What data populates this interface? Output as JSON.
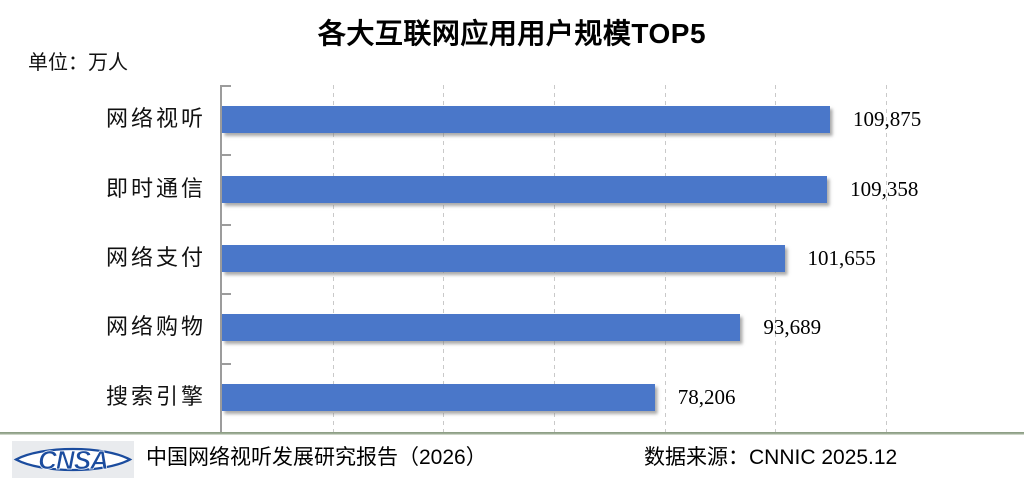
{
  "title": "各大互联网应用用户规模TOP5",
  "unit_label": "单位：万人",
  "chart_data": {
    "type": "bar",
    "orientation": "horizontal",
    "title": "各大互联网应用用户规模TOP5",
    "unit": "万人",
    "categories": [
      "网络视听",
      "即时通信",
      "网络支付",
      "网络购物",
      "搜索引擎"
    ],
    "values": [
      109875,
      109358,
      101655,
      93689,
      78206
    ],
    "value_labels": [
      "109,875",
      "109,358",
      "101,655",
      "93,689",
      "78,206"
    ],
    "xlabel": "",
    "ylabel": "",
    "xlim": [
      0,
      120000
    ],
    "gridline_interval": 20000,
    "grid": "vertical-dashed",
    "legend": "none",
    "bar_color": "#4a77c9"
  },
  "footer": {
    "logo_text": "CNSA",
    "report_label": "中国网络视听发展研究报告（2026）",
    "source_label": "数据来源：CNNIC 2025.12"
  },
  "colors": {
    "bar_blue": "#4a77c9",
    "axis_gray": "#9c9c9c",
    "gridline_gray": "#c9c9c9",
    "divider_green": "#8e9f86",
    "logo_blue": "#1b4c9e",
    "logo_background": "#e9ebee",
    "text_black": "#000000"
  }
}
